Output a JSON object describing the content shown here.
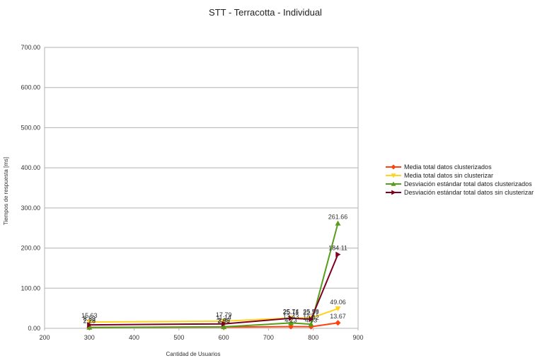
{
  "chart_data": {
    "type": "line",
    "title": "STT - Terracotta - Individual",
    "xlabel": "Cantidad de Usuarios",
    "ylabel": "Tiempos de respuesta [ms]",
    "xlim": [
      200,
      900
    ],
    "ylim": [
      0,
      700
    ],
    "x_ticks": [
      "200",
      "300",
      "400",
      "500",
      "600",
      "700",
      "800",
      "900"
    ],
    "y_ticks": [
      "0.00",
      "100.00",
      "200.00",
      "300.00",
      "400.00",
      "500.00",
      "600.00",
      "700.00"
    ],
    "grid": "horizontal",
    "legend_position": "right",
    "series": [
      {
        "name": "Media total datos clusterizados",
        "color": "#ff420e",
        "marker": "diamond",
        "points": [
          [
            300,
            2.29
          ],
          [
            600,
            2.98
          ],
          [
            750,
            4.23
          ],
          [
            795,
            4.03
          ],
          [
            855,
            13.67
          ]
        ],
        "labels": [
          "2.29",
          "2.98",
          "4.23",
          "4.03",
          "13.67"
        ]
      },
      {
        "name": "Media total datos sin clusterizar",
        "color": "#ffd320",
        "marker": "triangle-down",
        "points": [
          [
            300,
            15.63
          ],
          [
            600,
            17.79
          ],
          [
            750,
            25.74
          ],
          [
            795,
            25.56
          ],
          [
            855,
            49.06
          ]
        ],
        "labels": [
          "15.63",
          "17.79",
          "25.74",
          "25.56",
          "49.06"
        ]
      },
      {
        "name": "Desviación estándar total datos clusterizados",
        "color": "#579d1c",
        "marker": "triangle-up",
        "points": [
          [
            300,
            2.28
          ],
          [
            600,
            3.69
          ],
          [
            750,
            13.43
          ],
          [
            795,
            10.42
          ],
          [
            855,
            261.66
          ]
        ],
        "labels": [
          "2.28",
          "3.69",
          "13.43",
          "10.42",
          "261.66"
        ]
      },
      {
        "name": "Desviación estándar total datos sin clusterizar",
        "color": "#7e0021",
        "marker": "triangle-right",
        "points": [
          [
            300,
            8.59
          ],
          [
            600,
            11.14
          ],
          [
            750,
            25.11
          ],
          [
            795,
            22.77
          ],
          [
            855,
            184.11
          ]
        ],
        "labels": [
          "8.59",
          "11.14",
          "25.11",
          "22.77",
          "184.11"
        ]
      }
    ]
  }
}
